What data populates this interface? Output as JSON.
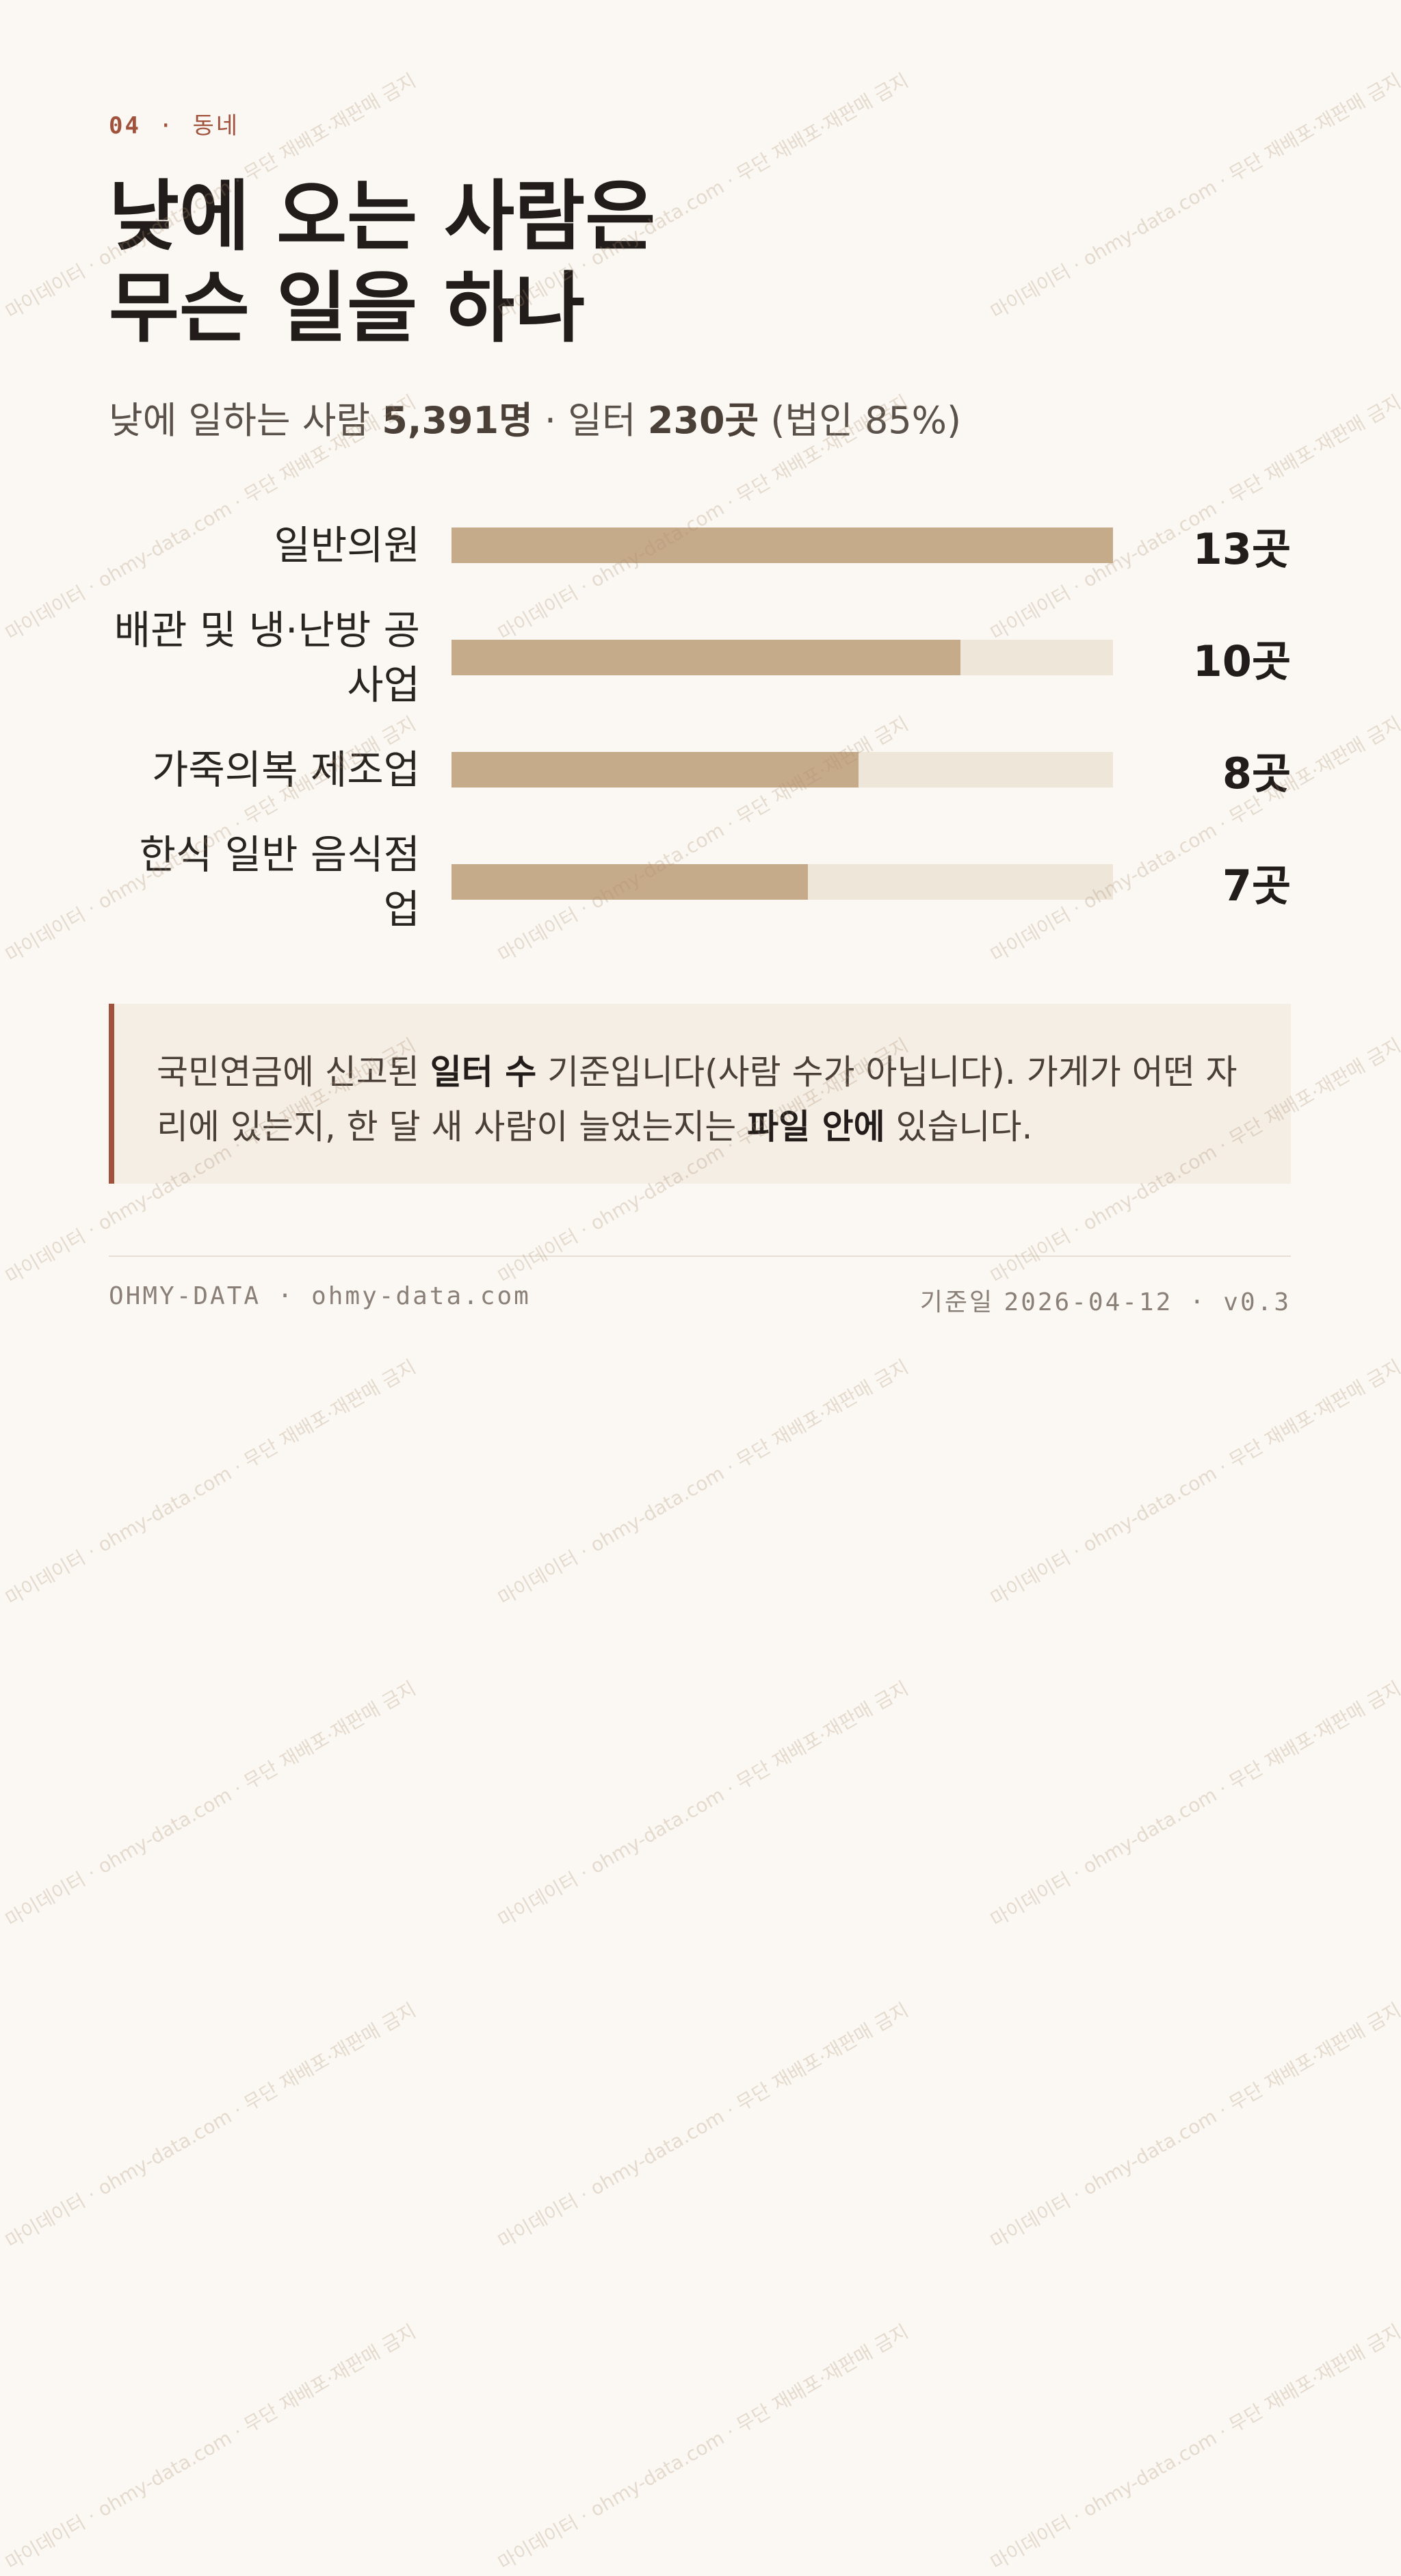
{
  "kicker": {
    "number": "04",
    "separator": "·",
    "section": "동네"
  },
  "title_lines": [
    "낮에 오는 사람은",
    "무슨 일을 하나"
  ],
  "subtitle": [
    {
      "text": "낮에 일하는 사람 ",
      "bold": false
    },
    {
      "text": "5,391명",
      "bold": true
    },
    {
      "text": " · 일터 ",
      "bold": false
    },
    {
      "text": "230곳",
      "bold": true
    },
    {
      "text": " (법인 85%)",
      "bold": false
    }
  ],
  "chart_data": {
    "type": "hbar",
    "categories": [
      "일반의원",
      "배관 및 냉·난방 공사업",
      "가죽의복 제조업",
      "한식 일반 음식점업"
    ],
    "values": [
      13,
      10,
      8,
      7
    ],
    "value_labels": [
      "13곳",
      "10곳",
      "8곳",
      "7곳"
    ],
    "xlim": [
      0,
      13
    ],
    "color": "#c6ab8b",
    "track_color": "#efe6da"
  },
  "note": [
    {
      "text": "국민연금에 신고된 ",
      "bold": false
    },
    {
      "text": "일터 수",
      "bold": true
    },
    {
      "text": " 기준입니다(사람 수가 아닙니다). 가게가 어떤 자리에 있는지, 한 달 새 사람이 늘었는지는 ",
      "bold": false
    },
    {
      "text": "파일 안에",
      "bold": true
    },
    {
      "text": " 있습니다.",
      "bold": false
    }
  ],
  "footer": {
    "left": "OHMY-DATA · ohmy-data.com",
    "date_label": "기준일",
    "date": "2026-04-12 · v0.3"
  },
  "watermark": "마이데이터 · ohmy-data.com · 무단 재배포·재판매 금지"
}
